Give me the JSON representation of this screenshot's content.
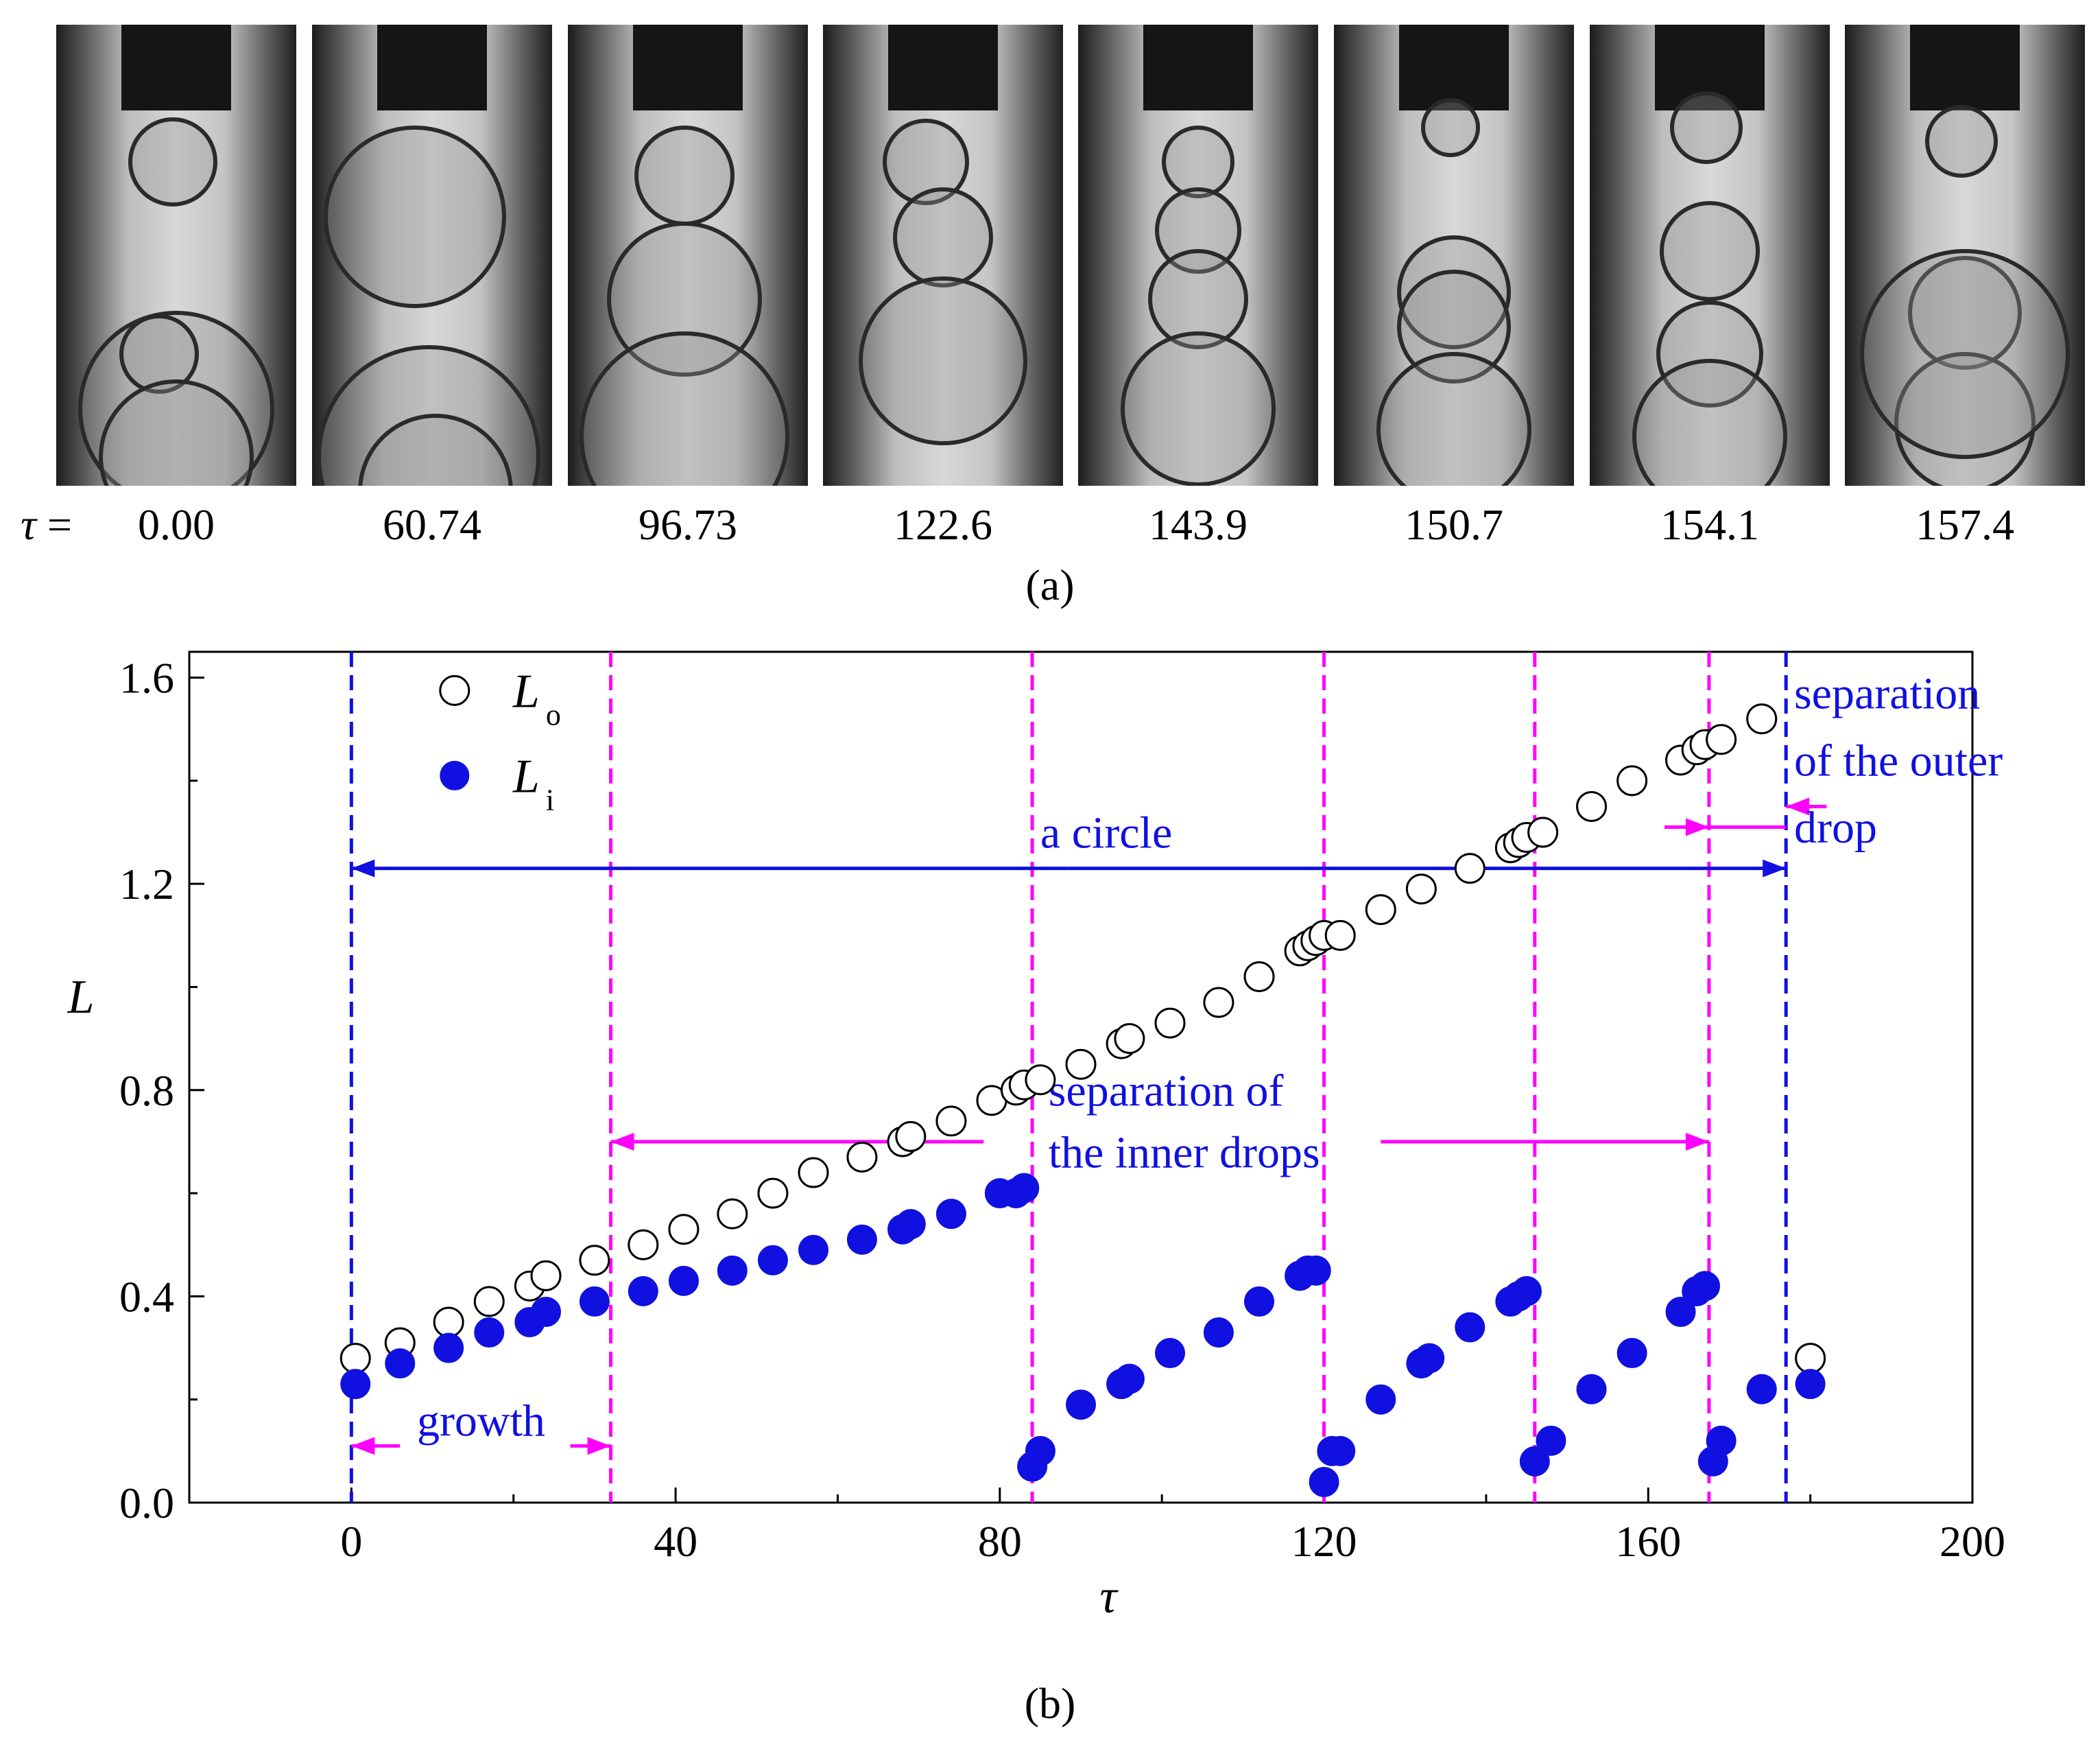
{
  "panel_a": {
    "prefix_symbol": "τ",
    "prefix_eq": " =",
    "frames": [
      {
        "tau": "0.00"
      },
      {
        "tau": "60.74"
      },
      {
        "tau": "96.73"
      },
      {
        "tau": "122.6"
      },
      {
        "tau": "143.9"
      },
      {
        "tau": "150.7"
      },
      {
        "tau": "154.1"
      },
      {
        "tau": "157.4"
      }
    ],
    "caption": "(a)"
  },
  "panel_b": {
    "caption": "(b)"
  },
  "colors": {
    "blue": "#1010e0",
    "magenta": "#ff00ff",
    "black": "#000000"
  },
  "chart_data": {
    "type": "scatter",
    "xlabel": "τ",
    "ylabel": "L",
    "xlim": [
      -20,
      200
    ],
    "ylim": [
      0,
      1.65
    ],
    "xticks": [
      0,
      40,
      80,
      120,
      160,
      200
    ],
    "yticks": [
      0.0,
      0.4,
      0.8,
      1.2,
      1.6
    ],
    "xtick_labels": [
      "0",
      "40",
      "80",
      "120",
      "160",
      "200"
    ],
    "ytick_labels": [
      "0.0",
      "0.4",
      "0.8",
      "1.2",
      "1.6"
    ],
    "legend": [
      {
        "symbol": "L",
        "subscript": "o",
        "style": "open"
      },
      {
        "symbol": "L",
        "subscript": "i",
        "style": "filled"
      }
    ],
    "series": [
      {
        "name": "Lo",
        "style": "open",
        "points": [
          [
            0.5,
            0.28
          ],
          [
            6,
            0.31
          ],
          [
            12,
            0.35
          ],
          [
            17,
            0.39
          ],
          [
            22,
            0.42
          ],
          [
            24,
            0.44
          ],
          [
            30,
            0.47
          ],
          [
            36,
            0.5
          ],
          [
            41,
            0.53
          ],
          [
            47,
            0.56
          ],
          [
            52,
            0.6
          ],
          [
            57,
            0.64
          ],
          [
            63,
            0.67
          ],
          [
            68,
            0.7
          ],
          [
            69,
            0.71
          ],
          [
            74,
            0.74
          ],
          [
            79,
            0.78
          ],
          [
            82,
            0.8
          ],
          [
            83,
            0.81
          ],
          [
            85,
            0.82
          ],
          [
            90,
            0.85
          ],
          [
            95,
            0.89
          ],
          [
            96,
            0.9
          ],
          [
            101,
            0.93
          ],
          [
            107,
            0.97
          ],
          [
            112,
            1.02
          ],
          [
            117,
            1.07
          ],
          [
            118,
            1.08
          ],
          [
            119,
            1.09
          ],
          [
            120,
            1.1
          ],
          [
            122,
            1.1
          ],
          [
            127,
            1.15
          ],
          [
            132,
            1.19
          ],
          [
            138,
            1.23
          ],
          [
            143,
            1.27
          ],
          [
            144,
            1.28
          ],
          [
            145,
            1.29
          ],
          [
            147,
            1.3
          ],
          [
            153,
            1.35
          ],
          [
            158,
            1.4
          ],
          [
            164,
            1.44
          ],
          [
            166,
            1.46
          ],
          [
            167,
            1.47
          ],
          [
            169,
            1.48
          ],
          [
            174,
            1.52
          ],
          [
            180,
            0.28
          ]
        ]
      },
      {
        "name": "Li",
        "style": "filled",
        "points": [
          [
            0.5,
            0.23
          ],
          [
            6,
            0.27
          ],
          [
            12,
            0.3
          ],
          [
            17,
            0.33
          ],
          [
            22,
            0.35
          ],
          [
            24,
            0.37
          ],
          [
            30,
            0.39
          ],
          [
            36,
            0.41
          ],
          [
            41,
            0.43
          ],
          [
            47,
            0.45
          ],
          [
            52,
            0.47
          ],
          [
            57,
            0.49
          ],
          [
            63,
            0.51
          ],
          [
            68,
            0.53
          ],
          [
            69,
            0.54
          ],
          [
            74,
            0.56
          ],
          [
            80,
            0.6
          ],
          [
            82,
            0.6
          ],
          [
            83,
            0.61
          ],
          [
            84,
            0.07
          ],
          [
            85,
            0.1
          ],
          [
            90,
            0.19
          ],
          [
            95,
            0.23
          ],
          [
            96,
            0.24
          ],
          [
            101,
            0.29
          ],
          [
            107,
            0.33
          ],
          [
            112,
            0.39
          ],
          [
            117,
            0.44
          ],
          [
            118,
            0.45
          ],
          [
            119,
            0.45
          ],
          [
            120,
            0.04
          ],
          [
            121,
            0.1
          ],
          [
            122,
            0.1
          ],
          [
            127,
            0.2
          ],
          [
            132,
            0.27
          ],
          [
            133,
            0.28
          ],
          [
            138,
            0.34
          ],
          [
            143,
            0.39
          ],
          [
            144,
            0.4
          ],
          [
            145,
            0.41
          ],
          [
            146,
            0.08
          ],
          [
            148,
            0.12
          ],
          [
            153,
            0.22
          ],
          [
            158,
            0.29
          ],
          [
            164,
            0.37
          ],
          [
            166,
            0.41
          ],
          [
            167,
            0.42
          ],
          [
            168,
            0.08
          ],
          [
            169,
            0.12
          ],
          [
            174,
            0.22
          ],
          [
            180,
            0.23
          ]
        ]
      }
    ],
    "vlines": [
      {
        "x": 0,
        "color": "blue"
      },
      {
        "x": 32,
        "color": "magenta"
      },
      {
        "x": 84,
        "color": "magenta"
      },
      {
        "x": 120,
        "color": "magenta"
      },
      {
        "x": 146,
        "color": "magenta"
      },
      {
        "x": 167.5,
        "color": "magenta"
      },
      {
        "x": 177,
        "color": "blue"
      }
    ],
    "annotations": {
      "a_circle": {
        "text": "a circle",
        "x": 85,
        "y": 1.27,
        "from": 0,
        "to": 177,
        "arrow_y": 1.23
      },
      "growth": {
        "text": "growth",
        "x": 16,
        "y": 0.13,
        "from": 0,
        "to": 32
      },
      "inner_line1": {
        "text": "separation of",
        "x": 86,
        "y": 0.77
      },
      "inner_line2": {
        "text": "the inner drops",
        "x": 86,
        "y": 0.65
      },
      "inner_arrow_left": {
        "from": 78,
        "to": 32,
        "y": 0.7
      },
      "inner_arrow_right": {
        "from": 127,
        "to": 167.5,
        "y": 0.7
      },
      "outer_line1": {
        "text": "separation",
        "x": 178,
        "y": 1.54
      },
      "outer_line2": {
        "text": "of the outer",
        "x": 178,
        "y": 1.41
      },
      "outer_line3": {
        "text": "drop",
        "x": 178,
        "y": 1.28
      },
      "outer_arrow_left": {
        "from": 162,
        "to": 167.5,
        "y": 1.31
      },
      "outer_arrow_right": {
        "from": 182,
        "to": 177,
        "y": 1.35
      }
    }
  }
}
